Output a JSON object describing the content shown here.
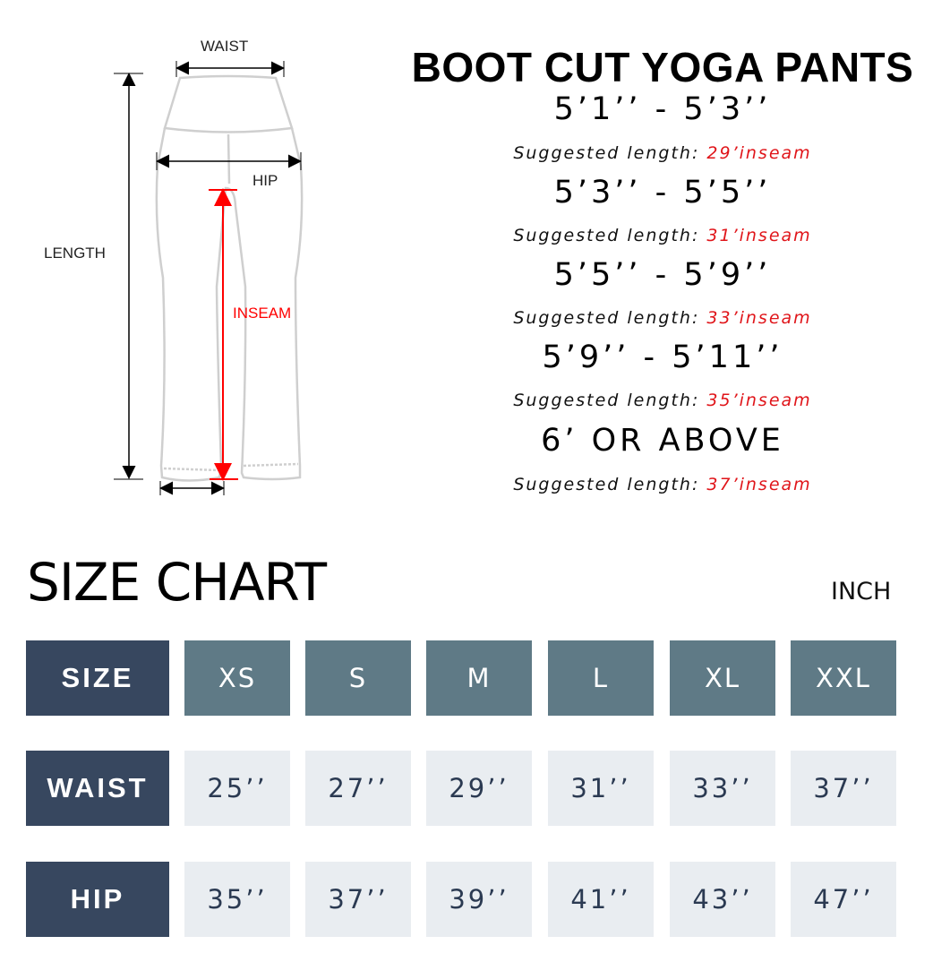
{
  "diagram": {
    "labels": {
      "waist": "WAIST",
      "hip": "HIP",
      "length": "LENGTH",
      "inseam": "INSEAM"
    },
    "inseam_color": "#e0151a"
  },
  "guide": {
    "title": "BOOT CUT YOGA PANTS",
    "suggested_prefix": "Suggested length: ",
    "rows": [
      {
        "height": "5’1’’ - 5’3’’",
        "inseam": "29’inseam"
      },
      {
        "height": "5’3’’ - 5’5’’",
        "inseam": "31’inseam"
      },
      {
        "height": "5’5’’ - 5’9’’",
        "inseam": "33’inseam"
      },
      {
        "height": "5’9’’ - 5’11’’",
        "inseam": "35’inseam"
      },
      {
        "height": "6’ OR ABOVE",
        "inseam": "37’inseam"
      }
    ]
  },
  "size_chart": {
    "title": "SIZE CHART",
    "unit": "INCH",
    "colors": {
      "header": "#37475f",
      "size": "#5f7a86",
      "value": "#e9edf1",
      "value_text": "#2b3a52"
    },
    "rows": [
      {
        "label": "SIZE",
        "cells": [
          "XS",
          "S",
          "M",
          "L",
          "XL",
          "XXL"
        ]
      },
      {
        "label": "WAIST",
        "cells": [
          "25’’",
          "27’’",
          "29’’",
          "31’’",
          "33’’",
          "37’’"
        ]
      },
      {
        "label": "HIP",
        "cells": [
          "35’’",
          "37’’",
          "39’’",
          "41’’",
          "43’’",
          "47’’"
        ]
      }
    ]
  }
}
